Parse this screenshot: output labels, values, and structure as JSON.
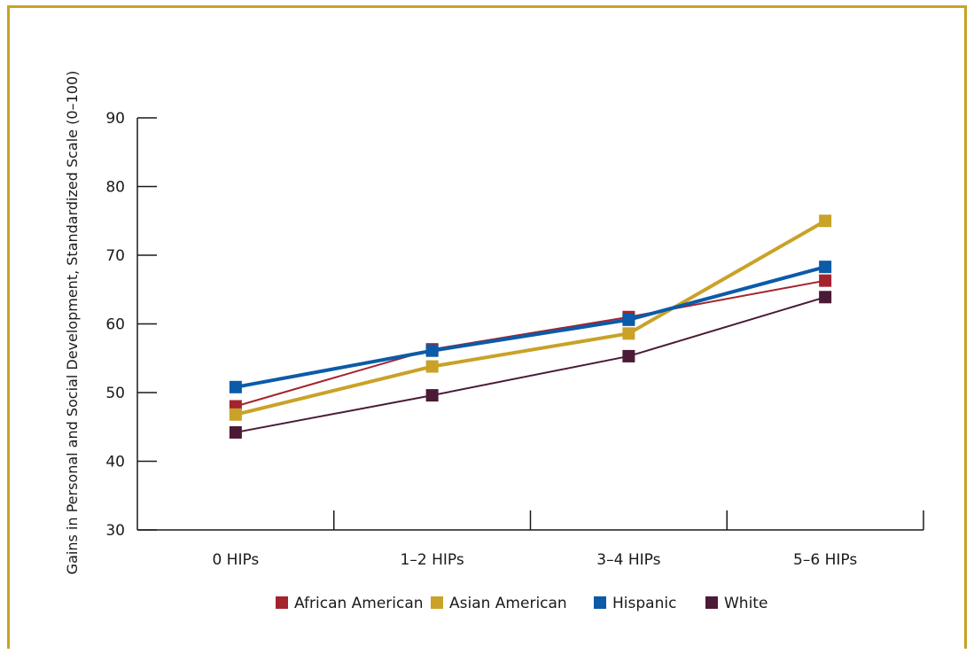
{
  "chart_data": {
    "type": "line",
    "title": "",
    "xlabel": "",
    "ylabel": "Gains in Personal and Social Development, Standardized Scale (0–100)",
    "ylim": [
      30,
      90
    ],
    "yticks": [
      30,
      40,
      50,
      60,
      70,
      80,
      90
    ],
    "ytick_labels": [
      "30",
      "40",
      "50",
      "60",
      "70",
      "80",
      "90"
    ],
    "categories": [
      "0 HIPs",
      "1–2 HIPs",
      "3–4 HIPs",
      "5–6 HIPs"
    ],
    "grid": false,
    "legend_position": "bottom",
    "series": [
      {
        "name": "African American",
        "color": "#a4232f",
        "values": [
          48,
          56.3,
          61,
          66.3
        ]
      },
      {
        "name": "Asian American",
        "color": "#c9a227",
        "values": [
          46.8,
          53.8,
          58.6,
          75
        ]
      },
      {
        "name": "Hispanic",
        "color": "#0b5ba8",
        "values": [
          50.8,
          56.1,
          60.6,
          68.3
        ]
      },
      {
        "name": "White",
        "color": "#4b1a36",
        "values": [
          44.2,
          49.6,
          55.3,
          63.9
        ]
      }
    ]
  }
}
